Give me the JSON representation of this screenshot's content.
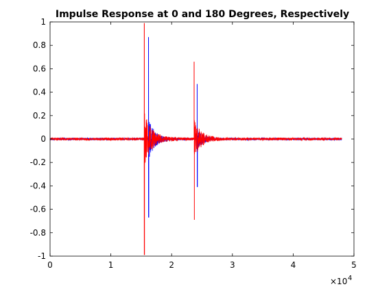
{
  "chart_data": {
    "type": "line",
    "title": "Impulse Response at 0 and 180 Degrees, Respectively",
    "xlabel": "",
    "ylabel": "",
    "xlim": [
      0,
      5
    ],
    "ylim": [
      -1,
      1
    ],
    "x_exponent_label": "×10",
    "x_exponent_power": "4",
    "x_ticks": [
      "0",
      "1",
      "2",
      "3",
      "4",
      "5"
    ],
    "y_ticks": [
      "-1",
      "-0.8",
      "-0.6",
      "-0.4",
      "-0.2",
      "0",
      "0.2",
      "0.4",
      "0.6",
      "0.8",
      "1"
    ],
    "grid": false,
    "legend": "none",
    "series": [
      {
        "color": "#0000ff",
        "x_range": [
          0,
          4.8
        ],
        "baseline_noise": 0.01,
        "spikes": [
          {
            "x": 1.62,
            "max": 0.87,
            "min": -0.67,
            "decay": 0.35,
            "envelope": 0.18
          },
          {
            "x": 2.42,
            "max": 0.47,
            "min": -0.41,
            "decay": 0.3,
            "envelope": 0.1
          }
        ]
      },
      {
        "color": "#ff0000",
        "x_range": [
          0,
          4.8
        ],
        "baseline_noise": 0.012,
        "spikes": [
          {
            "x": 1.55,
            "max": 0.99,
            "min": -0.99,
            "decay": 0.45,
            "envelope": 0.22
          },
          {
            "x": 2.37,
            "max": 0.66,
            "min": -0.69,
            "decay": 0.4,
            "envelope": 0.16
          }
        ]
      }
    ]
  }
}
